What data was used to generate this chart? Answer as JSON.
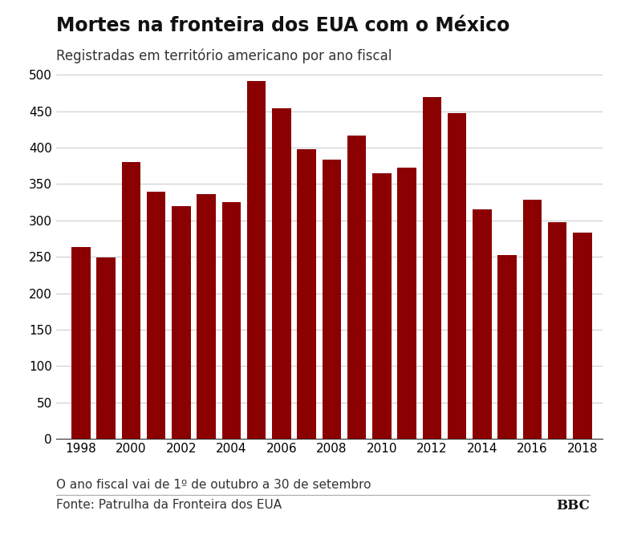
{
  "title": "Mortes na fronteira dos EUA com o México",
  "subtitle": "Registradas em território americano por ano fiscal",
  "footnote": "O ano fiscal vai de 1º de outubro a 30 de setembro",
  "source": "Fonte: Patrulha da Fronteira dos EUA",
  "logo": "BBC",
  "years": [
    1998,
    1999,
    2000,
    2001,
    2002,
    2003,
    2004,
    2005,
    2006,
    2007,
    2008,
    2009,
    2010,
    2011,
    2012,
    2013,
    2014,
    2015,
    2016,
    2017,
    2018
  ],
  "values": [
    263,
    249,
    380,
    340,
    320,
    336,
    325,
    492,
    454,
    398,
    384,
    417,
    365,
    373,
    470,
    447,
    315,
    252,
    328,
    298,
    283
  ],
  "bar_color": "#8B0000",
  "background_color": "#ffffff",
  "ylim": [
    0,
    500
  ],
  "yticks": [
    0,
    50,
    100,
    150,
    200,
    250,
    300,
    350,
    400,
    450,
    500
  ],
  "xtick_labels": [
    "1998",
    "",
    "2000",
    "",
    "2002",
    "",
    "2004",
    "",
    "2006",
    "",
    "2008",
    "",
    "2010",
    "",
    "2012",
    "",
    "2014",
    "",
    "2016",
    "",
    "2018"
  ],
  "title_fontsize": 17,
  "subtitle_fontsize": 12,
  "tick_fontsize": 11,
  "footnote_fontsize": 11,
  "source_fontsize": 11,
  "logo_fontsize": 12
}
